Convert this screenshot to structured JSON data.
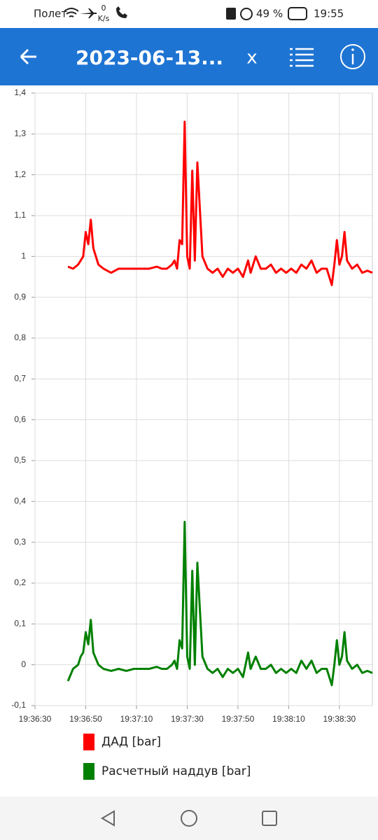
{
  "status_bar": {
    "carrier": "Полет",
    "speed_value": "0",
    "speed_unit": "K/s",
    "battery": "49 %",
    "time": "19:55"
  },
  "app_bar": {
    "title": "2023-06-13...",
    "close": "x"
  },
  "chart_data": {
    "type": "line",
    "x": [
      "19:36:43",
      "19:36:45",
      "19:36:47",
      "19:36:48",
      "19:36:49",
      "19:36:50",
      "19:36:51",
      "19:36:52",
      "19:36:53",
      "19:36:55",
      "19:36:57",
      "19:37:00",
      "19:37:03",
      "19:37:06",
      "19:37:09",
      "19:37:12",
      "19:37:15",
      "19:37:18",
      "19:37:20",
      "19:37:22",
      "19:37:24",
      "19:37:25",
      "19:37:26",
      "19:37:27",
      "19:37:28",
      "19:37:29",
      "19:37:30",
      "19:37:31",
      "19:37:32",
      "19:37:33",
      "19:37:34",
      "19:37:36",
      "19:37:38",
      "19:37:40",
      "19:37:42",
      "19:37:44",
      "19:37:46",
      "19:37:48",
      "19:37:50",
      "19:37:52",
      "19:37:54",
      "19:37:55",
      "19:37:57",
      "19:37:59",
      "19:38:01",
      "19:38:03",
      "19:38:05",
      "19:38:07",
      "19:38:09",
      "19:38:11",
      "19:38:13",
      "19:38:15",
      "19:38:17",
      "19:38:19",
      "19:38:21",
      "19:38:23",
      "19:38:25",
      "19:38:27",
      "19:38:28",
      "19:38:29",
      "19:38:30",
      "19:38:31",
      "19:38:32",
      "19:38:33",
      "19:38:35",
      "19:38:37",
      "19:38:39",
      "19:38:41",
      "19:38:43"
    ],
    "series": [
      {
        "name": "ДАД [bar]",
        "color": "#ff0000",
        "values": [
          0.975,
          0.97,
          0.98,
          0.99,
          1.0,
          1.06,
          1.03,
          1.09,
          1.02,
          0.98,
          0.97,
          0.96,
          0.97,
          0.97,
          0.97,
          0.97,
          0.97,
          0.975,
          0.97,
          0.97,
          0.98,
          0.99,
          0.97,
          1.04,
          1.03,
          1.33,
          1.0,
          0.97,
          1.21,
          0.99,
          1.23,
          1.0,
          0.97,
          0.96,
          0.97,
          0.95,
          0.97,
          0.96,
          0.97,
          0.95,
          0.99,
          0.96,
          1.0,
          0.97,
          0.97,
          0.98,
          0.96,
          0.97,
          0.96,
          0.97,
          0.96,
          0.98,
          0.97,
          0.99,
          0.96,
          0.97,
          0.97,
          0.93,
          0.98,
          1.04,
          0.98,
          1.0,
          1.06,
          0.99,
          0.97,
          0.98,
          0.96,
          0.965,
          0.96
        ]
      },
      {
        "name": "Расчетный наддув [bar]",
        "color": "#008000",
        "values": [
          -0.04,
          -0.01,
          0.0,
          0.02,
          0.03,
          0.08,
          0.05,
          0.11,
          0.03,
          0.0,
          -0.01,
          -0.015,
          -0.01,
          -0.015,
          -0.01,
          -0.01,
          -0.01,
          -0.005,
          -0.01,
          -0.01,
          0.0,
          0.01,
          -0.01,
          0.06,
          0.04,
          0.35,
          0.02,
          -0.01,
          0.23,
          0.0,
          0.25,
          0.02,
          -0.01,
          -0.02,
          -0.01,
          -0.03,
          -0.01,
          -0.02,
          -0.01,
          -0.03,
          0.03,
          -0.01,
          0.02,
          -0.01,
          -0.01,
          0.0,
          -0.02,
          -0.01,
          -0.02,
          -0.01,
          -0.02,
          0.01,
          -0.01,
          0.01,
          -0.02,
          -0.01,
          -0.01,
          -0.05,
          0.0,
          0.06,
          0.0,
          0.02,
          0.08,
          0.01,
          -0.01,
          0.0,
          -0.02,
          -0.015,
          -0.02
        ]
      }
    ],
    "xlim": [
      "19:36:30",
      "19:38:43"
    ],
    "xticks": [
      "19:36:30",
      "19:36:50",
      "19:37:10",
      "19:37:30",
      "19:37:50",
      "19:38:10",
      "19:38:30"
    ],
    "ylim": [
      -0.1,
      1.4
    ],
    "yticks": [
      {
        "value": -0.1,
        "label": "-0,1"
      },
      0,
      {
        "value": 0.1,
        "label": "0,1"
      },
      {
        "value": 0.2,
        "label": "0,2"
      },
      {
        "value": 0.3,
        "label": "0,3"
      },
      {
        "value": 0.4,
        "label": "0,4"
      },
      {
        "value": 0.5,
        "label": "0,5"
      },
      {
        "value": 0.6,
        "label": "0,6"
      },
      {
        "value": 0.7,
        "label": "0,7"
      },
      {
        "value": 0.8,
        "label": "0,8"
      },
      {
        "value": 0.9,
        "label": "0,9"
      },
      1,
      {
        "value": 1.1,
        "label": "1,1"
      },
      {
        "value": 1.2,
        "label": "1,2"
      },
      {
        "value": 1.3,
        "label": "1,3"
      },
      {
        "value": 1.4,
        "label": "1,4"
      }
    ],
    "grid": true
  }
}
